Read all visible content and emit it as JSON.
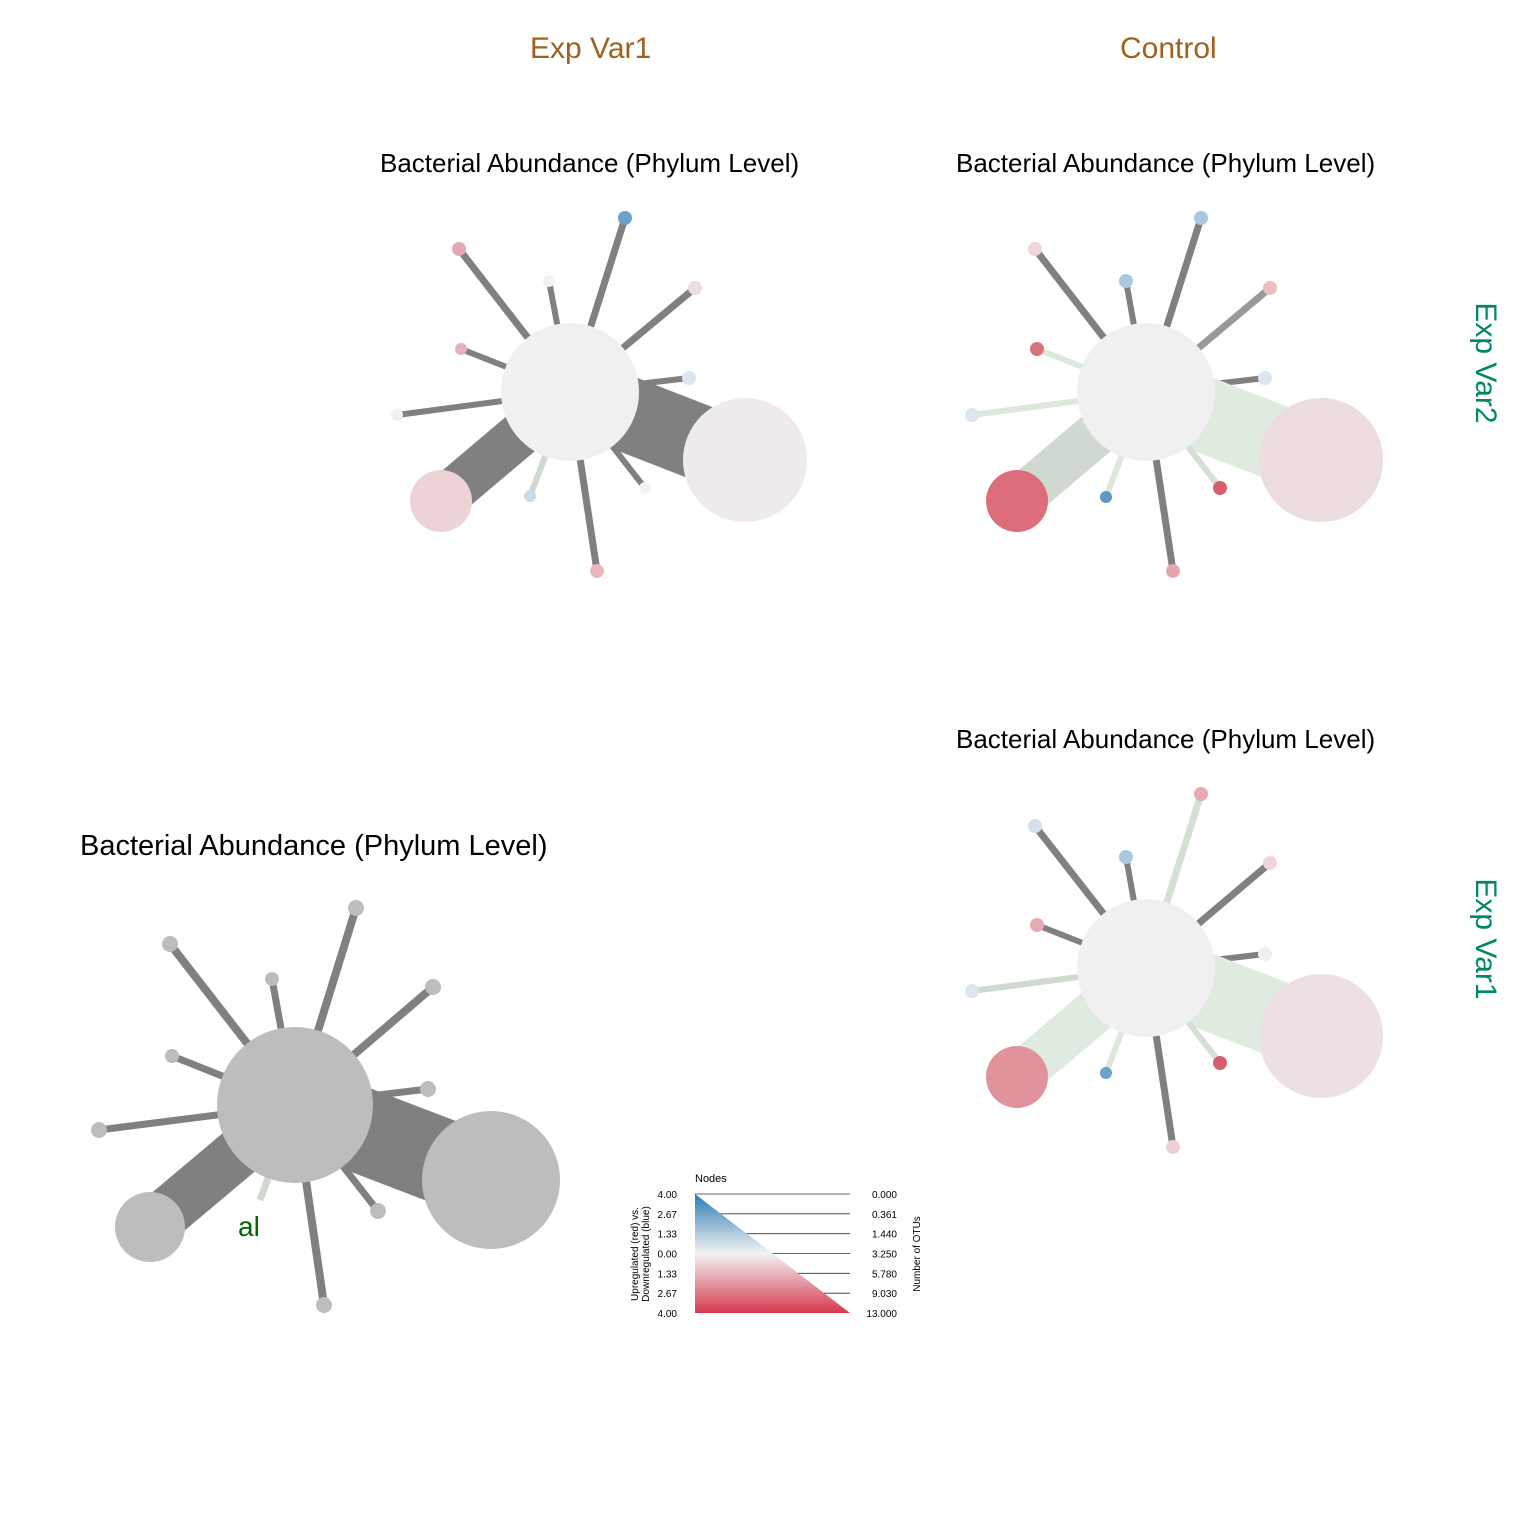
{
  "columns": [
    "Exp Var1",
    "Control"
  ],
  "rows": [
    "Exp Var2",
    "Exp Var1"
  ],
  "panels": [
    {
      "id": "top-left",
      "title": "Bacterial Abundance (Phylum Level)",
      "center_color": "#f0f0f0",
      "nodes": [
        {
          "name": "node-blue-top",
          "color": "#6aa2cc",
          "edge": "#808080",
          "edge_w": 7
        },
        {
          "name": "node-pink-tl",
          "color": "#e3aab3",
          "edge": "#808080",
          "edge_w": 7
        },
        {
          "name": "node-white-top",
          "color": "#f2f2f2",
          "edge": "#808080",
          "edge_w": 6
        },
        {
          "name": "node-pink-tr",
          "color": "#f0dcdc",
          "edge": "#808080",
          "edge_w": 7
        },
        {
          "name": "node-pink-l",
          "color": "#e6b3bc",
          "edge": "#808080",
          "edge_w": 6
        },
        {
          "name": "node-bluegrey-r",
          "color": "#dde6ee",
          "edge": "#808080",
          "edge_w": 6
        },
        {
          "name": "node-white-l",
          "color": "#f0f0f0",
          "edge": "#808080",
          "edge_w": 6
        },
        {
          "name": "node-large-r",
          "color": "#f0ebeb",
          "edge": "#808080",
          "edge_w": 75
        },
        {
          "name": "node-large-l",
          "color": "#edd2d6",
          "edge": "#808080",
          "edge_w": 45
        },
        {
          "name": "node-lightblue-b",
          "color": "#c6dce9",
          "edge": "#cfd9cf",
          "edge_w": 6
        },
        {
          "name": "node-white-br",
          "color": "#f2f2f2",
          "edge": "#808080",
          "edge_w": 6
        },
        {
          "name": "node-pink-b",
          "color": "#e9b6bd",
          "edge": "#808080",
          "edge_w": 7
        }
      ]
    },
    {
      "id": "top-right",
      "title": "Bacterial Abundance (Phylum Level)",
      "center_color": "#f0f0f0",
      "nodes": [
        {
          "name": "node-blue-top",
          "color": "#a9c8e0",
          "edge": "#808080",
          "edge_w": 7
        },
        {
          "name": "node-pink-tl",
          "color": "#f0d6d8",
          "edge": "#808080",
          "edge_w": 7
        },
        {
          "name": "node-blue-mid",
          "color": "#a8c8e2",
          "edge": "#808080",
          "edge_w": 6
        },
        {
          "name": "node-pink-tr",
          "color": "#eac0c4",
          "edge": "#999999",
          "edge_w": 7
        },
        {
          "name": "node-red-l",
          "color": "#d9737f",
          "edge": "#dde8dd",
          "edge_w": 6
        },
        {
          "name": "node-bluegrey-r",
          "color": "#dde6ee",
          "edge": "#808080",
          "edge_w": 6
        },
        {
          "name": "node-white-l",
          "color": "#dde6ee",
          "edge": "#dde8dd",
          "edge_w": 6
        },
        {
          "name": "node-large-r",
          "color": "#ecdcde",
          "edge": "#e0ebe0",
          "edge_w": 75
        },
        {
          "name": "node-large-l",
          "color": "#dc6e7c",
          "edge": "#cfd9cf",
          "edge_w": 45
        },
        {
          "name": "node-blue-b",
          "color": "#5b97c8",
          "edge": "#dde8dd",
          "edge_w": 6
        },
        {
          "name": "node-red-br",
          "color": "#d85d6f",
          "edge": "#d5e0d5",
          "edge_w": 6
        },
        {
          "name": "node-pink-b",
          "color": "#e6a6b0",
          "edge": "#808080",
          "edge_w": 7
        }
      ]
    },
    {
      "id": "bottom-right",
      "title": "Bacterial Abundance (Phylum Level)",
      "center_color": "#f0f0f0",
      "nodes": [
        {
          "name": "node-pink-top",
          "color": "#e6aab4",
          "edge": "#d5e0d5",
          "edge_w": 7
        },
        {
          "name": "node-bluegrey-tl",
          "color": "#d5e0ea",
          "edge": "#808080",
          "edge_w": 7
        },
        {
          "name": "node-blue-mid",
          "color": "#a8c8e2",
          "edge": "#808080",
          "edge_w": 6
        },
        {
          "name": "node-pink-tr",
          "color": "#efd5d8",
          "edge": "#808080",
          "edge_w": 7
        },
        {
          "name": "node-pink-l",
          "color": "#e6aab4",
          "edge": "#808080",
          "edge_w": 6
        },
        {
          "name": "node-white-r",
          "color": "#f0f0f0",
          "edge": "#808080",
          "edge_w": 6
        },
        {
          "name": "node-white-l",
          "color": "#dde6ee",
          "edge": "#cfd9cf",
          "edge_w": 6
        },
        {
          "name": "node-large-r",
          "color": "#ede0e2",
          "edge": "#e0ebe0",
          "edge_w": 75
        },
        {
          "name": "node-large-l",
          "color": "#e0939c",
          "edge": "#e0ebe0",
          "edge_w": 45
        },
        {
          "name": "node-blue-b",
          "color": "#6aa2cc",
          "edge": "#dde8dd",
          "edge_w": 6
        },
        {
          "name": "node-red-br",
          "color": "#d85d6f",
          "edge": "#d5e0d5",
          "edge_w": 6
        },
        {
          "name": "node-pink-b",
          "color": "#efd0d4",
          "edge": "#808080",
          "edge_w": 7
        }
      ]
    },
    {
      "id": "bottom-left",
      "title": "Bacterial Abundance (Phylum Level)",
      "center_color": "#bdbdbd",
      "label": "al",
      "label_color": "#006400",
      "nodes": [
        {
          "name": "node-top",
          "color": "#bdbdbd",
          "edge": "#808080",
          "edge_w": 8
        },
        {
          "name": "node-tl",
          "color": "#bdbdbd",
          "edge": "#808080",
          "edge_w": 8
        },
        {
          "name": "node-top-mid",
          "color": "#bdbdbd",
          "edge": "#808080",
          "edge_w": 7
        },
        {
          "name": "node-tr",
          "color": "#bdbdbd",
          "edge": "#808080",
          "edge_w": 8
        },
        {
          "name": "node-l",
          "color": "#bdbdbd",
          "edge": "#808080",
          "edge_w": 7
        },
        {
          "name": "node-r",
          "color": "#bdbdbd",
          "edge": "#808080",
          "edge_w": 7
        },
        {
          "name": "node-far-l",
          "color": "#bdbdbd",
          "edge": "#808080",
          "edge_w": 7
        },
        {
          "name": "node-large-r",
          "color": "#bdbdbd",
          "edge": "#808080",
          "edge_w": 85
        },
        {
          "name": "node-large-l",
          "color": "#bdbdbd",
          "edge": "#808080",
          "edge_w": 50
        },
        {
          "name": "node-green-b",
          "color": "#bdbdbd",
          "edge": "#cfd9cf",
          "edge_w": 7
        },
        {
          "name": "node-br",
          "color": "#bdbdbd",
          "edge": "#808080",
          "edge_w": 7
        },
        {
          "name": "node-b",
          "color": "#bdbdbd",
          "edge": "#808080",
          "edge_w": 8
        }
      ]
    }
  ],
  "legend": {
    "title": "Nodes",
    "left_axis_label_line1": "Upregulated (red) vs.",
    "left_axis_label_line2": "Downregulated (blue)",
    "right_axis_label": "Number of OTUs",
    "left_ticks": [
      "4.00",
      "2.67",
      "1.33",
      "0.00",
      "1.33",
      "2.67",
      "4.00"
    ],
    "right_ticks": [
      "0.000",
      "0.361",
      "1.440",
      "3.250",
      "5.780",
      "9.030",
      "13.000"
    ],
    "colors": {
      "top": "#2b7bb4",
      "middle": "#f2f2f2",
      "bottom": "#d6394f"
    }
  }
}
